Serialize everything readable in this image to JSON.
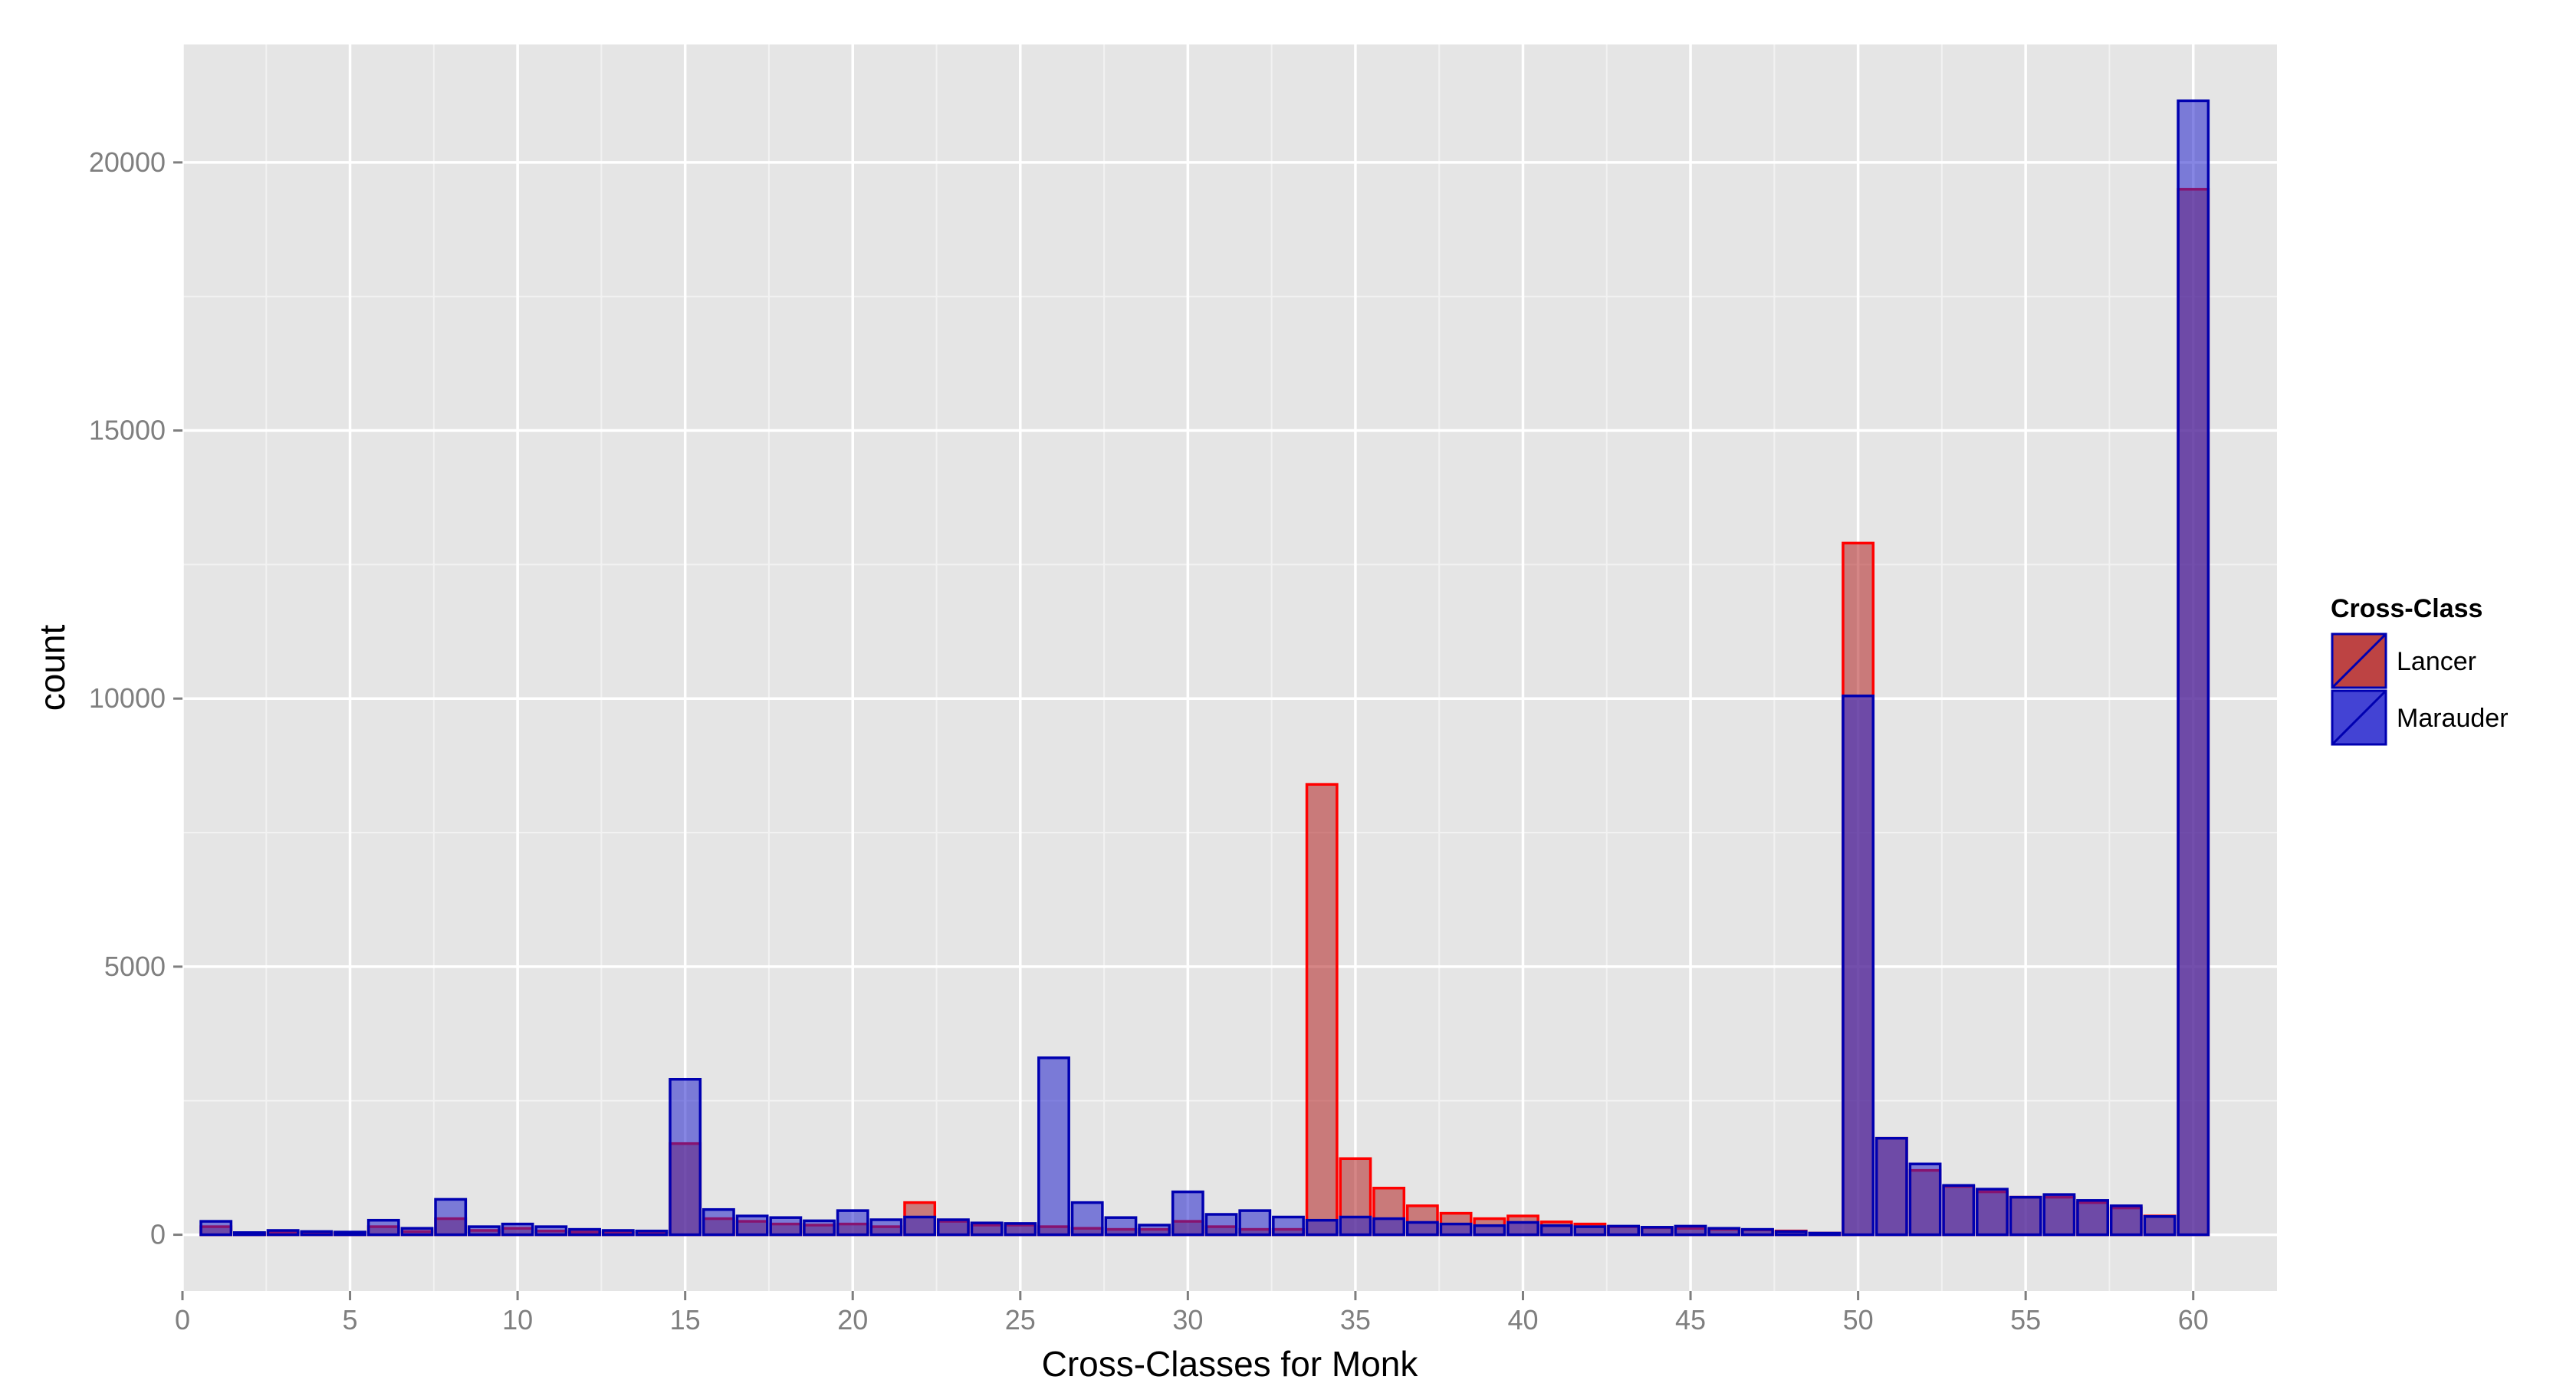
{
  "chart_data": {
    "type": "bar",
    "title": "",
    "xlabel": "Cross-Classes for Monk",
    "ylabel": "count",
    "xlim": [
      0,
      62.5
    ],
    "ylim": [
      -1050,
      22200
    ],
    "x_ticks": [
      0,
      5,
      10,
      15,
      20,
      25,
      30,
      35,
      40,
      45,
      50,
      55,
      60
    ],
    "x_tick_labels": [
      "0",
      "5",
      "10",
      "15",
      "20",
      "25",
      "30",
      "35",
      "40",
      "45",
      "50",
      "55",
      "60"
    ],
    "y_ticks": [
      0,
      5000,
      10000,
      15000,
      20000
    ],
    "y_tick_labels": [
      "0",
      "5000",
      "10000",
      "15000",
      "20000"
    ],
    "grid": true,
    "bar_position": "identity (overlaid)",
    "legend": {
      "title": "Cross-Class",
      "placement": "right",
      "entries": [
        "Lancer",
        "Marauder"
      ]
    },
    "colors": {
      "Lancer": {
        "fill": "#b22222",
        "stroke": "#ff0000"
      },
      "Marauder": {
        "fill": "#2222cc",
        "stroke": "#0000b0"
      },
      "overlap": "#662d7f",
      "panel_background": "#e5e5e5",
      "grid_major": "#ffffff",
      "grid_minor": "#f2f2f2"
    },
    "x": [
      1,
      2,
      3,
      4,
      5,
      6,
      7,
      8,
      9,
      10,
      11,
      12,
      13,
      14,
      15,
      16,
      17,
      18,
      19,
      20,
      21,
      22,
      23,
      24,
      25,
      26,
      27,
      28,
      29,
      30,
      31,
      32,
      33,
      34,
      35,
      36,
      37,
      38,
      39,
      40,
      41,
      42,
      43,
      44,
      45,
      46,
      47,
      48,
      49,
      50,
      51,
      52,
      53,
      54,
      55,
      56,
      57,
      58,
      59,
      60
    ],
    "series": [
      {
        "name": "Lancer",
        "values": [
          150,
          20,
          40,
          30,
          20,
          150,
          60,
          300,
          80,
          120,
          70,
          50,
          40,
          30,
          1700,
          300,
          250,
          200,
          180,
          200,
          150,
          600,
          250,
          180,
          180,
          150,
          120,
          100,
          100,
          250,
          150,
          100,
          100,
          8400,
          1420,
          870,
          540,
          400,
          300,
          350,
          240,
          200,
          150,
          130,
          120,
          100,
          90,
          70,
          30,
          12900,
          1800,
          1200,
          900,
          800,
          700,
          700,
          600,
          500,
          350,
          19500
        ]
      },
      {
        "name": "Marauder",
        "values": [
          250,
          40,
          80,
          60,
          50,
          270,
          120,
          660,
          150,
          200,
          150,
          100,
          80,
          70,
          2900,
          470,
          350,
          320,
          260,
          450,
          280,
          330,
          280,
          220,
          210,
          3300,
          600,
          320,
          180,
          800,
          380,
          450,
          330,
          270,
          330,
          300,
          230,
          200,
          170,
          230,
          170,
          150,
          160,
          140,
          160,
          120,
          100,
          60,
          30,
          10050,
          1800,
          1320,
          920,
          850,
          700,
          750,
          640,
          540,
          340,
          21150
        ]
      }
    ]
  }
}
